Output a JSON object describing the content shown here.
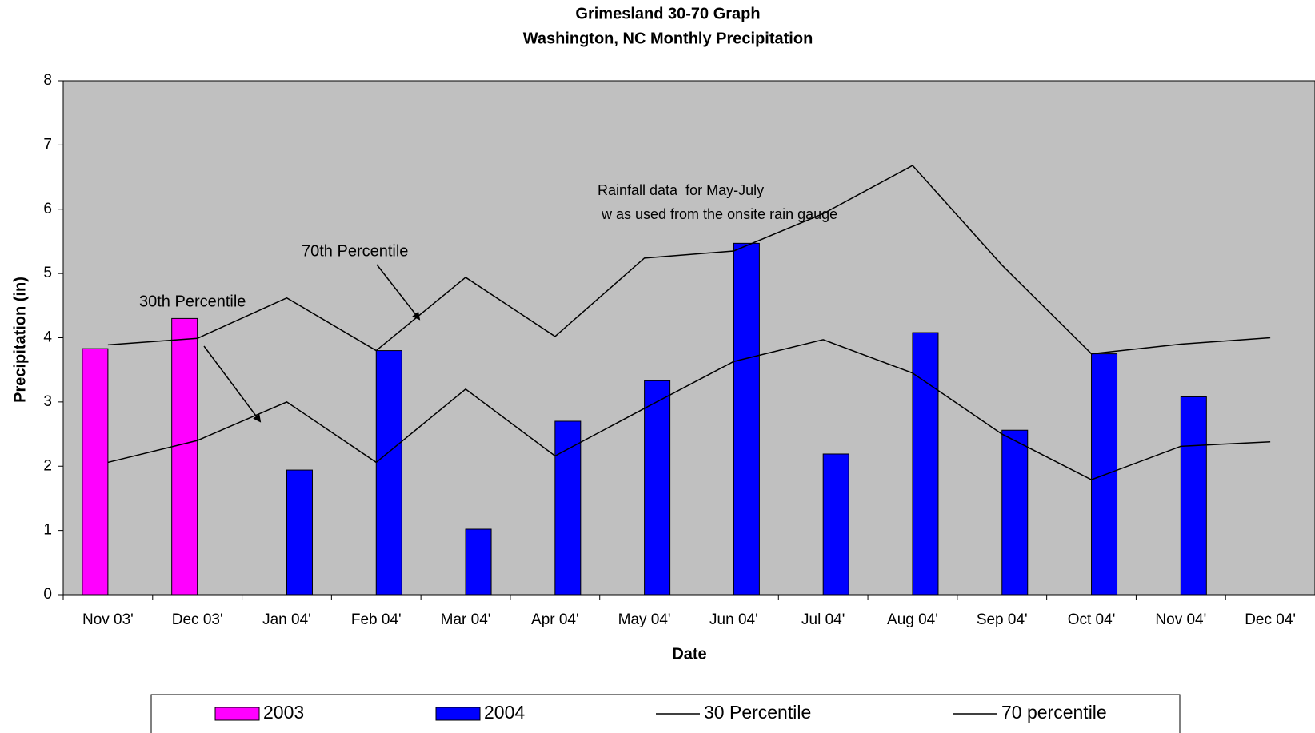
{
  "chart_data": {
    "type": "bar",
    "title": "Grimesland 30-70 Graph",
    "subtitle": "Washington, NC Monthly Precipitation",
    "x_label": "Date",
    "y_label": "Precipitation (in)",
    "categories": [
      "Nov 03'",
      "Dec 03'",
      "Jan 04'",
      "Feb 04'",
      "Mar 04'",
      "Apr 04'",
      "May 04'",
      "Jun 04'",
      "Jul 04'",
      "Aug 04'",
      "Sep 04'",
      "Oct 04'",
      "Nov 04'",
      "Dec 04'"
    ],
    "series": [
      {
        "name": "2003",
        "type": "bar",
        "color": "#ff00ff",
        "values": [
          3.83,
          4.3,
          null,
          null,
          null,
          null,
          null,
          null,
          null,
          null,
          null,
          null,
          null,
          null
        ]
      },
      {
        "name": "2004",
        "type": "bar",
        "color": "#0000ff",
        "values": [
          null,
          null,
          1.94,
          3.8,
          1.02,
          2.7,
          3.33,
          5.47,
          2.19,
          4.08,
          2.56,
          3.75,
          3.08,
          null
        ]
      },
      {
        "name": "30 Percentile",
        "type": "line",
        "color": "#000000",
        "values": [
          2.06,
          2.4,
          3.0,
          2.06,
          3.2,
          2.16,
          2.9,
          3.63,
          3.97,
          3.45,
          2.5,
          1.79,
          2.31,
          2.38
        ]
      },
      {
        "name": "70 percentile",
        "type": "line",
        "color": "#000000",
        "values": [
          3.89,
          3.99,
          4.62,
          3.8,
          4.94,
          4.02,
          5.24,
          5.35,
          5.93,
          6.68,
          5.13,
          3.75,
          3.9,
          4.0
        ]
      }
    ],
    "annotations": [
      "30th Percentile",
      "70th Percentile",
      "Rainfall data  for May-July",
      " w as used from the onsite rain gauge"
    ],
    "ylim": [
      0,
      8
    ],
    "yticks": [
      0,
      1,
      2,
      3,
      4,
      5,
      6,
      7,
      8
    ],
    "grid": false,
    "background": "#c0c0c0"
  }
}
